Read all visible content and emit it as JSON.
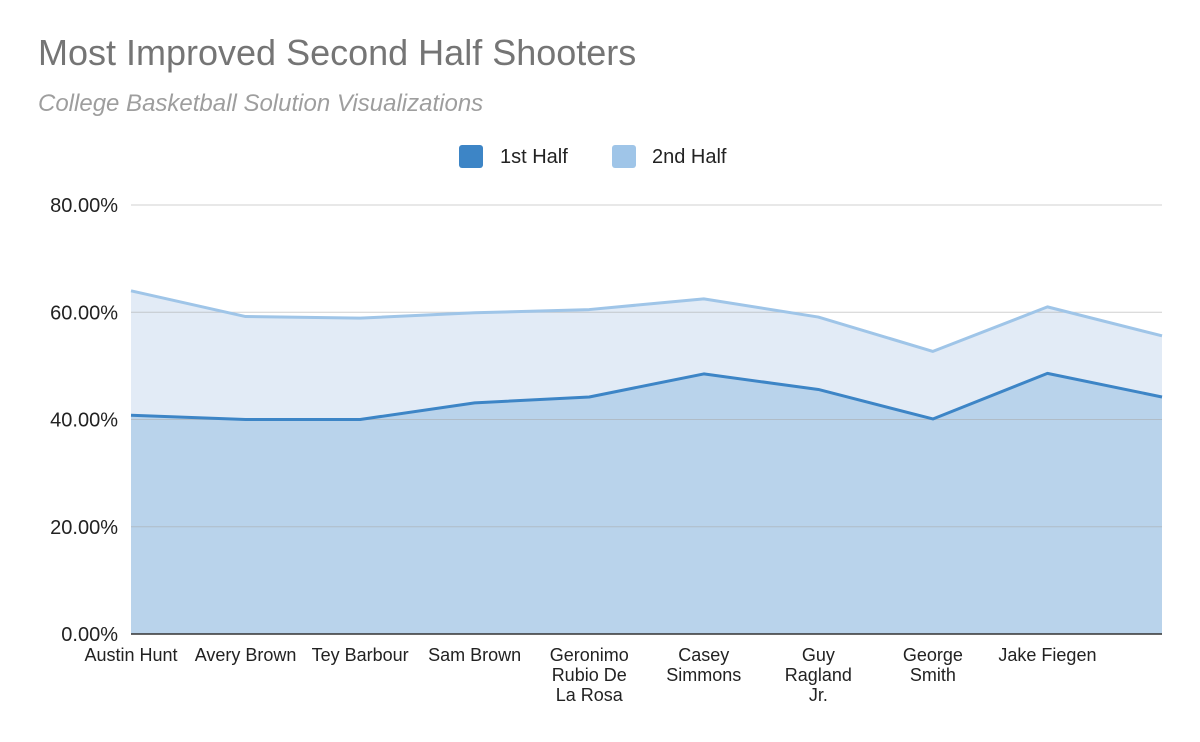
{
  "chart_data": {
    "type": "area",
    "title": "Most Improved Second Half Shooters",
    "subtitle": "College Basketball Solution Visualizations",
    "xlabel": "",
    "ylabel": "",
    "categories": [
      "Austin Hunt",
      "Avery Brown",
      "Tey Barbour",
      "Sam Brown",
      "Geronimo Rubio De La Rosa",
      "Casey Simmons",
      "Guy Ragland Jr.",
      "George Smith",
      "Jake Fiegen",
      ""
    ],
    "series": [
      {
        "name": "1st Half",
        "color": "#3d85c6",
        "values": [
          40.8,
          40.0,
          40.0,
          43.1,
          44.2,
          48.5,
          45.6,
          40.1,
          48.6,
          44.2
        ]
      },
      {
        "name": "2nd Half",
        "color": "#9fc5e8",
        "values": [
          64.0,
          59.2,
          58.9,
          59.9,
          60.5,
          62.5,
          59.1,
          52.7,
          61.0,
          55.6
        ]
      }
    ],
    "ylim": [
      0,
      80
    ],
    "yticks": [
      "0.00%",
      "20.00%",
      "40.00%",
      "60.00%",
      "80.00%"
    ],
    "grid": true,
    "legend_position": "top-center"
  }
}
